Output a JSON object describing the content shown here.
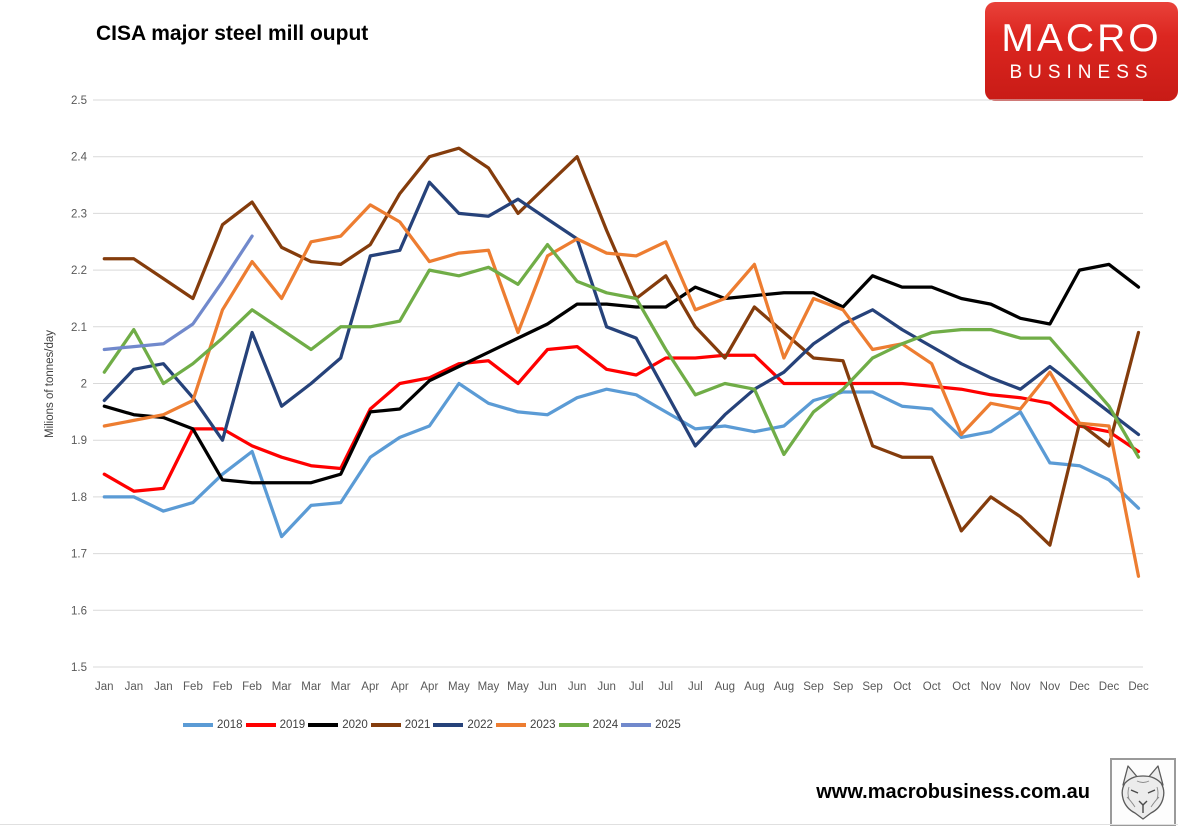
{
  "title": "CISA major steel mill ouput",
  "brand": {
    "line1": "MACRO",
    "line2": "BUSINESS"
  },
  "footer": {
    "website": "www.macrobusiness.com.au",
    "logo": "fox-sketch-logo"
  },
  "chart_data": {
    "type": "line",
    "title": "CISA major steel mill ouput",
    "xlabel": "",
    "ylabel": "Milions of tonnes/day",
    "ylim": [
      1.5,
      2.5
    ],
    "ytick_step": 0.1,
    "grid": "horizontal",
    "grid_color": "#d9d9d9",
    "tick_color": "#595959",
    "legend_position": "bottom",
    "categories": [
      "Jan",
      "Jan",
      "Jan",
      "Feb",
      "Feb",
      "Feb",
      "Mar",
      "Mar",
      "Mar",
      "Apr",
      "Apr",
      "Apr",
      "May",
      "May",
      "May",
      "Jun",
      "Jun",
      "Jun",
      "Jul",
      "Jul",
      "Jul",
      "Aug",
      "Aug",
      "Aug",
      "Sep",
      "Sep",
      "Sep",
      "Oct",
      "Oct",
      "Oct",
      "Nov",
      "Nov",
      "Nov",
      "Dec",
      "Dec",
      "Dec"
    ],
    "series": [
      {
        "name": "2018",
        "color": "#5B9BD5",
        "values": [
          1.8,
          1.8,
          1.775,
          1.79,
          1.84,
          1.88,
          1.73,
          1.785,
          1.79,
          1.87,
          1.905,
          1.925,
          2.0,
          1.965,
          1.95,
          1.945,
          1.975,
          1.99,
          1.98,
          1.95,
          1.92,
          1.925,
          1.915,
          1.925,
          1.97,
          1.985,
          1.985,
          1.96,
          1.955,
          1.905,
          1.915,
          1.95,
          1.86,
          1.855,
          1.83,
          1.78
        ]
      },
      {
        "name": "2019",
        "color": "#FF0000",
        "values": [
          1.84,
          1.81,
          1.815,
          1.92,
          1.92,
          1.89,
          1.87,
          1.855,
          1.85,
          1.955,
          2.0,
          2.01,
          2.035,
          2.04,
          2.0,
          2.06,
          2.065,
          2.025,
          2.015,
          2.045,
          2.045,
          2.05,
          2.05,
          2.0,
          2.0,
          2.0,
          2.0,
          2.0,
          1.995,
          1.99,
          1.98,
          1.975,
          1.965,
          1.925,
          1.915,
          1.88
        ]
      },
      {
        "name": "2020",
        "color": "#000000",
        "values": [
          1.96,
          1.945,
          1.94,
          1.92,
          1.83,
          1.825,
          1.825,
          1.825,
          1.84,
          1.95,
          1.955,
          2.005,
          2.03,
          2.055,
          2.08,
          2.105,
          2.14,
          2.14,
          2.135,
          2.135,
          2.17,
          2.15,
          2.155,
          2.16,
          2.16,
          2.135,
          2.19,
          2.17,
          2.17,
          2.15,
          2.14,
          2.115,
          2.105,
          2.2,
          2.21,
          2.17
        ]
      },
      {
        "name": "2021",
        "color": "#843C0C",
        "values": [
          2.22,
          2.22,
          2.185,
          2.15,
          2.28,
          2.32,
          2.24,
          2.215,
          2.21,
          2.245,
          2.335,
          2.4,
          2.415,
          2.38,
          2.3,
          2.35,
          2.4,
          2.27,
          2.15,
          2.19,
          2.1,
          2.045,
          2.135,
          2.09,
          2.045,
          2.04,
          1.89,
          1.87,
          1.87,
          1.74,
          1.8,
          1.765,
          1.715,
          1.93,
          1.89,
          2.09
        ]
      },
      {
        "name": "2022",
        "color": "#26427A",
        "values": [
          1.97,
          2.025,
          2.035,
          1.975,
          1.9,
          2.09,
          1.96,
          2.0,
          2.045,
          2.225,
          2.235,
          2.355,
          2.3,
          2.295,
          2.325,
          2.29,
          2.255,
          2.1,
          2.08,
          1.985,
          1.89,
          1.945,
          1.99,
          2.02,
          2.07,
          2.105,
          2.13,
          2.095,
          2.065,
          2.035,
          2.01,
          1.99,
          2.03,
          1.99,
          1.95,
          1.91
        ]
      },
      {
        "name": "2023",
        "color": "#ED7D31",
        "values": [
          1.925,
          1.935,
          1.945,
          1.97,
          2.13,
          2.215,
          2.15,
          2.25,
          2.26,
          2.315,
          2.285,
          2.215,
          2.23,
          2.235,
          2.09,
          2.225,
          2.255,
          2.23,
          2.225,
          2.25,
          2.13,
          2.15,
          2.21,
          2.045,
          2.15,
          2.13,
          2.06,
          2.07,
          2.035,
          1.91,
          1.965,
          1.955,
          2.02,
          1.93,
          1.925,
          1.66
        ]
      },
      {
        "name": "2024",
        "color": "#70AD47",
        "values": [
          2.02,
          2.095,
          2.0,
          2.035,
          2.08,
          2.13,
          2.095,
          2.06,
          2.1,
          2.1,
          2.11,
          2.2,
          2.19,
          2.205,
          2.175,
          2.245,
          2.18,
          2.16,
          2.15,
          2.06,
          1.98,
          2.0,
          1.99,
          1.875,
          1.95,
          1.99,
          2.045,
          2.07,
          2.09,
          2.095,
          2.095,
          2.08,
          2.08,
          2.02,
          1.96,
          1.87
        ]
      },
      {
        "name": "2025",
        "color": "#7189CC",
        "values": [
          2.06,
          2.065,
          2.07,
          2.105,
          2.18,
          2.26
        ]
      }
    ]
  }
}
